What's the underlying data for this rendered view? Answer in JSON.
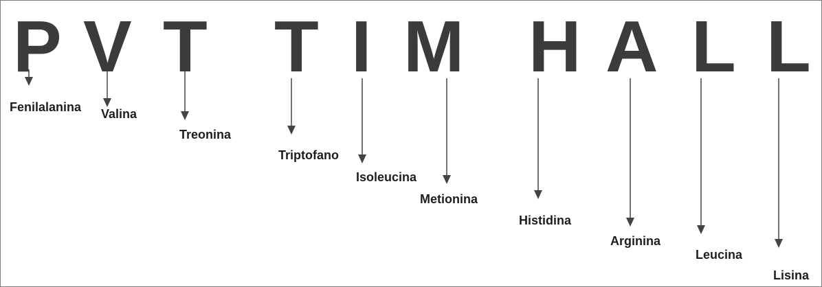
{
  "mnemonic": {
    "items": [
      {
        "letter": "P",
        "amino_acid": "Fenilalanina"
      },
      {
        "letter": "V",
        "amino_acid": "Valina"
      },
      {
        "letter": "T",
        "amino_acid": "Treonina"
      },
      {
        "letter": "T",
        "amino_acid": "Triptofano"
      },
      {
        "letter": "I",
        "amino_acid": "Isoleucina"
      },
      {
        "letter": "M",
        "amino_acid": "Metionina"
      },
      {
        "letter": "H",
        "amino_acid": "Histidina"
      },
      {
        "letter": "A",
        "amino_acid": "Arginina"
      },
      {
        "letter": "L",
        "amino_acid": "Leucina"
      },
      {
        "letter": "L",
        "amino_acid": "Lisina"
      }
    ]
  },
  "colors": {
    "letter": "#3b3b3b",
    "label": "#1e1e1e",
    "arrow": "#444444",
    "background": "#ffffff",
    "border": "#7a7a7a"
  }
}
